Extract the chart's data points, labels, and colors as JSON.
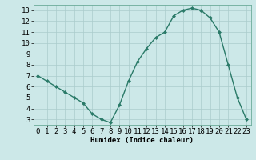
{
  "x": [
    0,
    1,
    2,
    3,
    4,
    5,
    6,
    7,
    8,
    9,
    10,
    11,
    12,
    13,
    14,
    15,
    16,
    17,
    18,
    19,
    20,
    21,
    22,
    23
  ],
  "y": [
    7.0,
    6.5,
    6.0,
    5.5,
    5.0,
    4.5,
    3.5,
    3.0,
    2.7,
    4.3,
    6.5,
    8.3,
    9.5,
    10.5,
    11.0,
    12.5,
    13.0,
    13.2,
    13.0,
    12.3,
    11.0,
    8.0,
    5.0,
    3.0
  ],
  "line_color": "#2a7a68",
  "marker_color": "#2a7a68",
  "bg_color": "#cce8e8",
  "grid_color": "#aacccc",
  "xlabel": "Humidex (Indice chaleur)",
  "ylim": [
    2.5,
    13.5
  ],
  "xlim": [
    -0.5,
    23.5
  ],
  "yticks": [
    3,
    4,
    5,
    6,
    7,
    8,
    9,
    10,
    11,
    12,
    13
  ],
  "xticks": [
    0,
    1,
    2,
    3,
    4,
    5,
    6,
    7,
    8,
    9,
    10,
    11,
    12,
    13,
    14,
    15,
    16,
    17,
    18,
    19,
    20,
    21,
    22,
    23
  ],
  "xlabel_fontsize": 6.5,
  "tick_fontsize": 6.5
}
